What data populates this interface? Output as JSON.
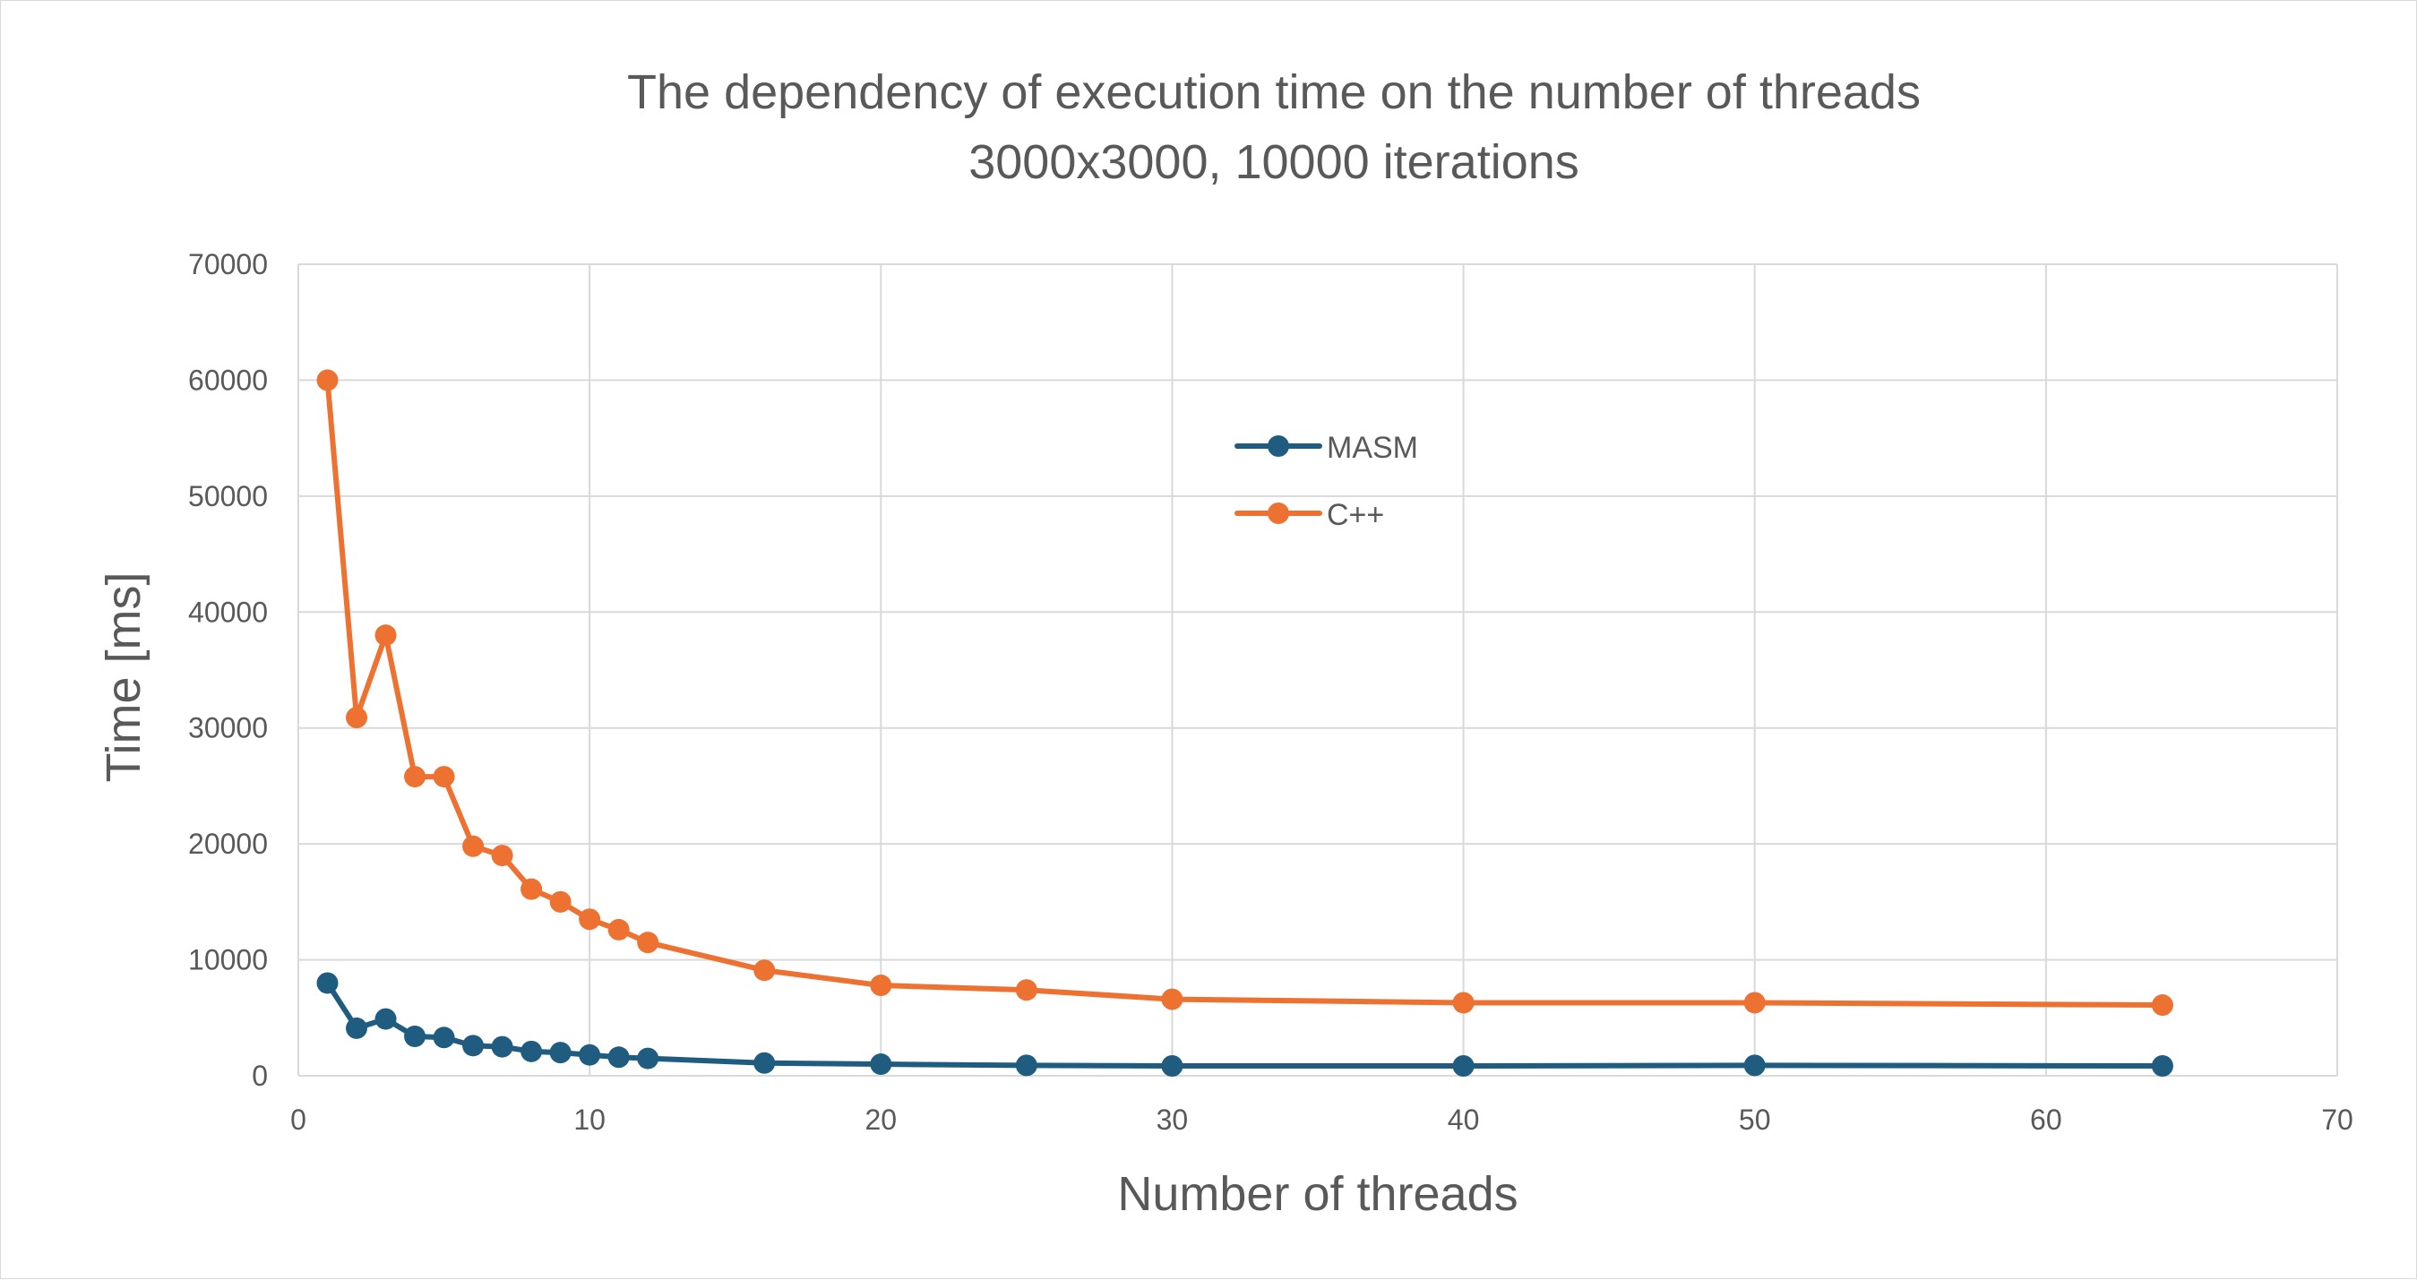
{
  "chart_data": {
    "type": "line",
    "title": "The dependency of execution time on the number of threads",
    "subtitle": "3000x3000, 10000 iterations",
    "xlabel": "Number of threads",
    "ylabel": "Time [ms]",
    "xlim": [
      0,
      70
    ],
    "ylim": [
      0,
      70000
    ],
    "x_ticks": [
      "0",
      "10",
      "20",
      "30",
      "40",
      "50",
      "60",
      "70"
    ],
    "y_ticks": [
      "0",
      "10000",
      "20000",
      "30000",
      "40000",
      "50000",
      "60000",
      "70000"
    ],
    "grid": true,
    "legend_position": "inside-top-center",
    "x": [
      1,
      2,
      3,
      4,
      5,
      6,
      7,
      8,
      9,
      10,
      11,
      12,
      16,
      20,
      25,
      30,
      40,
      50,
      64
    ],
    "series": [
      {
        "name": "MASM",
        "color": "#1f5c7f",
        "values": [
          8000,
          4100,
          4900,
          3400,
          3300,
          2600,
          2500,
          2100,
          2000,
          1800,
          1600,
          1500,
          1100,
          1000,
          900,
          850,
          850,
          900,
          850
        ]
      },
      {
        "name": "C++",
        "color": "#ed7130",
        "values": [
          60000,
          30900,
          38000,
          25800,
          25800,
          19800,
          19000,
          16100,
          15000,
          13500,
          12600,
          11500,
          9100,
          7800,
          7400,
          6600,
          6300,
          6300,
          6100
        ]
      }
    ]
  }
}
